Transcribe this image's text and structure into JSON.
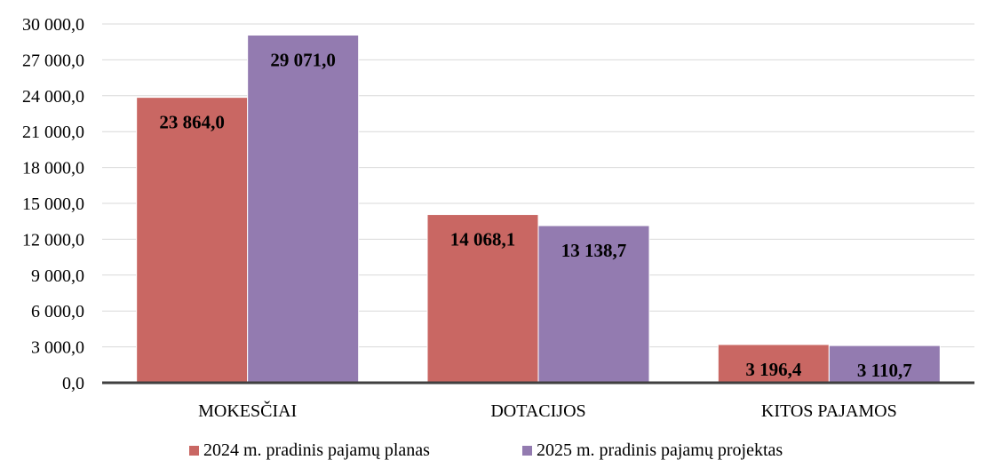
{
  "chart_data": {
    "type": "bar",
    "categories": [
      "MOKESČIAI",
      "DOTACIJOS",
      "KITOS PAJAMOS"
    ],
    "series": [
      {
        "name": "2024 m. pradinis pajamų planas",
        "values": [
          23864.0,
          14068.1,
          3196.4
        ],
        "labels": [
          "23 864,0",
          "14 068,1",
          "3 196,4"
        ],
        "color": "#c96763"
      },
      {
        "name": "2025 m. pradinis pajamų projektas",
        "values": [
          29071.0,
          13138.7,
          3110.7
        ],
        "labels": [
          "29 071,0",
          "13 138,7",
          "3 110,7"
        ],
        "color": "#937bb0"
      }
    ],
    "yticks": [
      0,
      3000,
      6000,
      9000,
      12000,
      15000,
      18000,
      21000,
      24000,
      27000,
      30000
    ],
    "ytick_labels": [
      "0,0",
      "3 000,0",
      "6 000,0",
      "9 000,0",
      "12 000,0",
      "15 000,0",
      "18 000,0",
      "21 000,0",
      "24 000,0",
      "27 000,0",
      "30 000,0"
    ],
    "ylim": [
      0,
      30000
    ],
    "grid": true,
    "legend_position": "bottom"
  }
}
